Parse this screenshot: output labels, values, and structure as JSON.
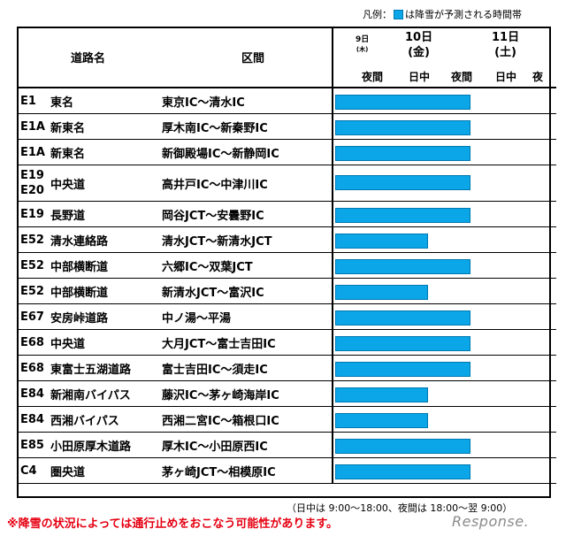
{
  "legend": {
    "prefix": "凡例：",
    "text": "は降雪が予測される時間帯",
    "color": "#0AA6E8"
  },
  "header": {
    "road": "道路名",
    "section": "区間",
    "day9": "9日",
    "day9_wd": "(木)",
    "day10": "10日",
    "day10_wd": "(金)",
    "day11": "11日",
    "day11_wd": "(土)",
    "periods": [
      "夜間",
      "日中",
      "夜間",
      "日中",
      "夜"
    ]
  },
  "rows": [
    {
      "code": "E1",
      "name": "東名",
      "section": "東京IC～清水IC",
      "bar_end": 0.61
    },
    {
      "code": "E1A",
      "name": "新東名",
      "section": "厚木南IC～新秦野IC",
      "bar_end": 0.61
    },
    {
      "code": "E1A",
      "name": "新東名",
      "section": "新御殿場IC～新静岡IC",
      "bar_end": 0.61
    },
    {
      "code": "E19",
      "code2": "E20",
      "name": "中央道",
      "section": "高井戸IC～中津川IC",
      "bar_end": 0.61,
      "tall": true
    },
    {
      "code": "E19",
      "name": "長野道",
      "section": "岡谷JCT～安曇野IC",
      "bar_end": 0.61
    },
    {
      "code": "E52",
      "name": "清水連絡路",
      "section": "清水JCT～新清水JCT",
      "bar_end": 0.42
    },
    {
      "code": "E52",
      "name": "中部横断道",
      "section": "六郷IC～双葉JCT",
      "bar_end": 0.61
    },
    {
      "code": "E52",
      "name": "中部横断道",
      "section": "新清水JCT～富沢IC",
      "bar_end": 0.42
    },
    {
      "code": "E67",
      "name": "安房峠道路",
      "section": "中ノ湯～平湯",
      "bar_end": 0.61
    },
    {
      "code": "E68",
      "name": "中央道",
      "section": "大月JCT～富士吉田IC",
      "bar_end": 0.61
    },
    {
      "code": "E68",
      "name": "東富士五湖道路",
      "section": "富士吉田IC～須走IC",
      "bar_end": 0.61
    },
    {
      "code": "E84",
      "name": "新湘南バイパス",
      "section": "藤沢IC～茅ヶ崎海岸IC",
      "bar_end": 0.42
    },
    {
      "code": "E84",
      "name": "西湘バイパス",
      "section": "西湘二宮IC～箱根口IC",
      "bar_end": 0.42
    },
    {
      "code": "E85",
      "name": "小田原厚木道路",
      "section": "厚木IC～小田原西IC",
      "bar_end": 0.61
    },
    {
      "code": "C4",
      "name": "圏央道",
      "section": "茅ヶ崎JCT～相模原IC",
      "bar_end": 0.61
    }
  ],
  "note_time": "（日中は 9:00～18:00、夜間は 18:00～翌 9:00）",
  "note_warning": "※降雪の状況によっては通行止めをおこなう可能性があります。",
  "watermark": "Response."
}
